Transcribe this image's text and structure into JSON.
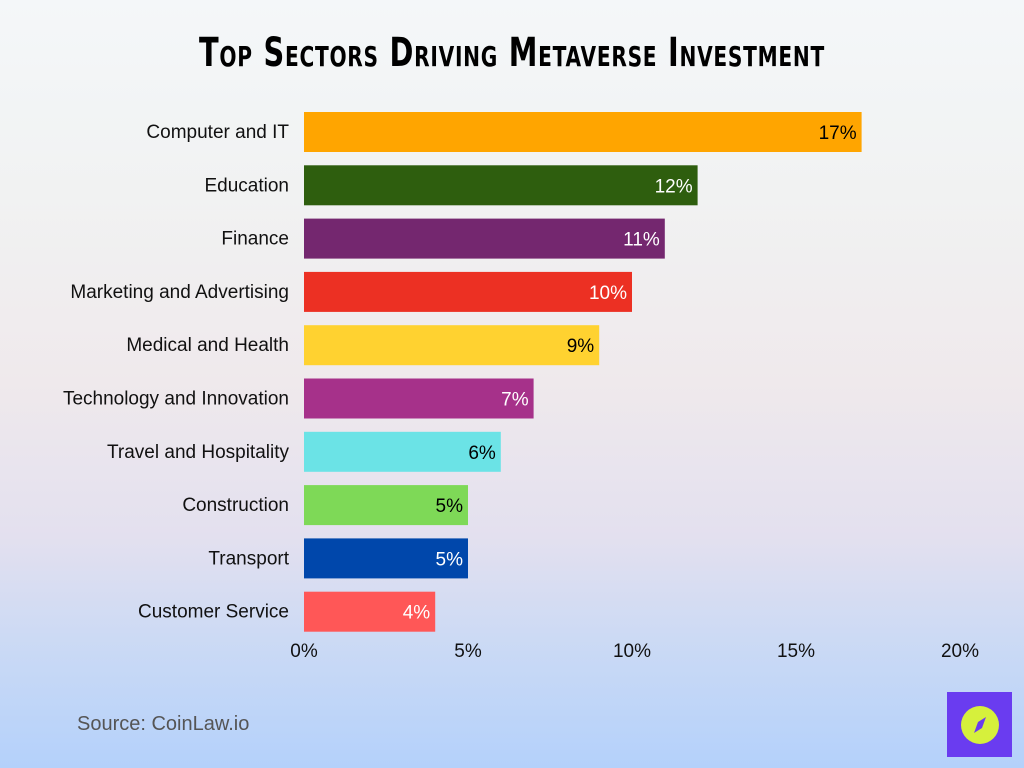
{
  "chart_data": {
    "type": "bar",
    "orientation": "horizontal",
    "title": "Top Sectors Driving Metaverse Investment",
    "categories": [
      "Computer and IT",
      "Education",
      "Finance",
      "Marketing and Advertising",
      "Medical and Health",
      "Technology and Innovation",
      "Travel and Hospitality",
      "Construction",
      "Transport",
      "Customer Service"
    ],
    "values": [
      17,
      12,
      11,
      10,
      9,
      7,
      6,
      5,
      5,
      4
    ],
    "value_labels": [
      "17%",
      "12%",
      "11%",
      "10%",
      "9%",
      "7%",
      "6%",
      "5%",
      "5%",
      "4%"
    ],
    "colors": [
      "#FFA500",
      "#2E5E0E",
      "#74276F",
      "#EC3023",
      "#FFD230",
      "#A6318A",
      "#6BE3E6",
      "#7ED957",
      "#0047AB",
      "#FF5757"
    ],
    "label_colors": [
      "#000000",
      "#ffffff",
      "#ffffff",
      "#ffffff",
      "#000000",
      "#ffffff",
      "#000000",
      "#000000",
      "#ffffff",
      "#ffffff"
    ],
    "xlim": [
      0,
      20
    ],
    "x_ticks": [
      "0%",
      "5%",
      "10%",
      "15%",
      "20%"
    ],
    "x_tick_values": [
      0,
      5,
      10,
      15,
      20
    ],
    "grid": false,
    "xlabel": "",
    "ylabel": ""
  },
  "source": "Source: CoinLaw.io",
  "logo": {
    "icon": "compass-icon",
    "background": "#6a3cf0",
    "accent": "#d6f03c"
  }
}
